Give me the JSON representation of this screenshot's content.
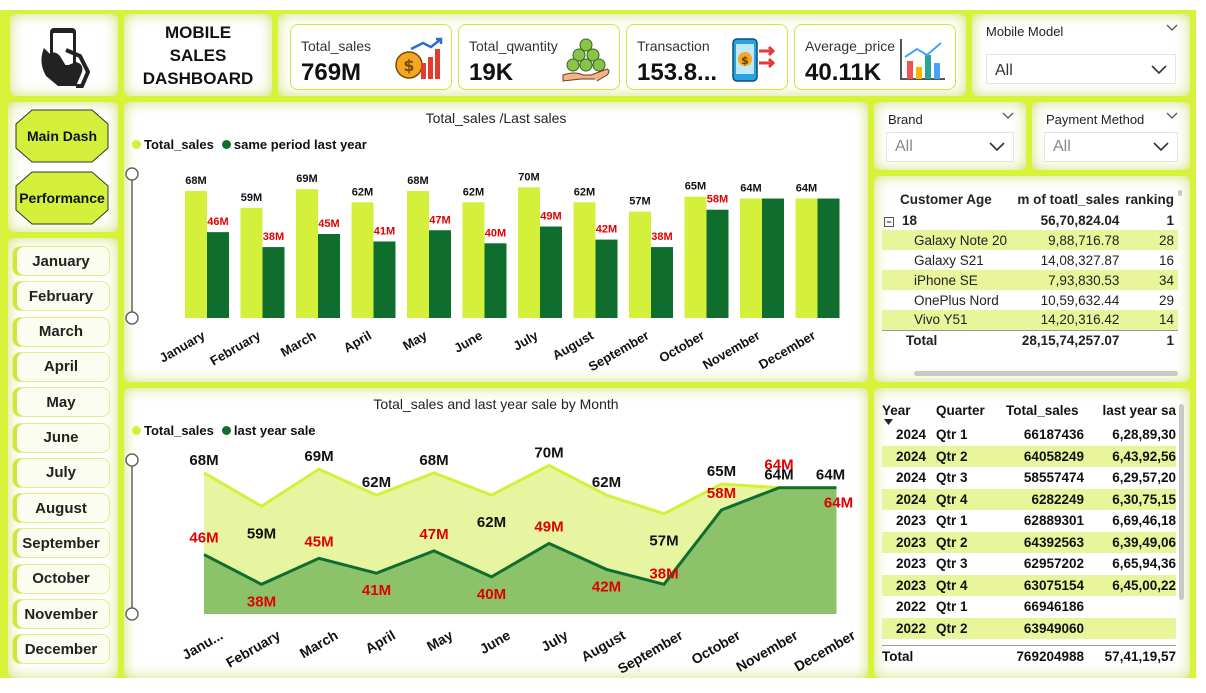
{
  "header": {
    "title_lines": [
      "MOBILE",
      "SALES",
      "DASHBOARD"
    ],
    "logo_icon": "phone-hand-icon"
  },
  "kpis": [
    {
      "label": "Total_sales",
      "value": "769M",
      "icon": "money-growth-icon"
    },
    {
      "label": "Total_qwantity",
      "value": "19K",
      "icon": "coins-hand-icon"
    },
    {
      "label": "Transaction",
      "value": "153.8...",
      "icon": "phone-transfer-icon"
    },
    {
      "label": "Average_price",
      "value": "40.11K",
      "icon": "bar-chart-icon"
    }
  ],
  "slicers": {
    "mobile_model": {
      "title": "Mobile Model",
      "value": "All"
    },
    "brand": {
      "title": "Brand",
      "value": "All"
    },
    "payment": {
      "title": "Payment Method",
      "value": "All"
    }
  },
  "nav": {
    "main": "Main Dash",
    "performance": "Performance"
  },
  "months": [
    "January",
    "February",
    "March",
    "April",
    "May",
    "June",
    "July",
    "August",
    "September",
    "October",
    "November",
    "December"
  ],
  "colors": {
    "accent": "#d8f23a",
    "bar_light": "#d4f03a",
    "bar_dark": "#0f6e2e",
    "area_light": "#e8f5a0",
    "area_dark": "#8cc26a",
    "red_label": "#e00000"
  },
  "bar_chart": {
    "title": "Total_sales /Last sales",
    "legend": [
      "Total_sales",
      "same period last year"
    ]
  },
  "area_chart": {
    "title": "Total_sales and last year sale by Month",
    "legend": [
      "Total_sales",
      "last year sale"
    ],
    "first_tick": "Janu..."
  },
  "chart_data": [
    {
      "type": "bar",
      "title": "Total_sales /Last sales",
      "categories": [
        "January",
        "February",
        "March",
        "April",
        "May",
        "June",
        "July",
        "August",
        "September",
        "October",
        "November",
        "December"
      ],
      "series": [
        {
          "name": "Total_sales",
          "values": [
            68,
            59,
            69,
            62,
            68,
            62,
            70,
            62,
            57,
            65,
            64,
            64
          ],
          "labels": [
            "68M",
            "59M",
            "69M",
            "62M",
            "68M",
            "62M",
            "70M",
            "62M",
            "57M",
            "65M",
            "64M",
            "64M"
          ]
        },
        {
          "name": "same period last year",
          "values": [
            46,
            38,
            45,
            41,
            47,
            40,
            49,
            42,
            38,
            58,
            64,
            64
          ],
          "labels": [
            "46M",
            "38M",
            "45M",
            "41M",
            "47M",
            "40M",
            "49M",
            "42M",
            "38M",
            "58M",
            "",
            ""
          ]
        }
      ],
      "ylim": [
        0,
        75
      ]
    },
    {
      "type": "area",
      "title": "Total_sales and last year sale by Month",
      "categories": [
        "January",
        "February",
        "March",
        "April",
        "May",
        "June",
        "July",
        "August",
        "September",
        "October",
        "November",
        "December"
      ],
      "series": [
        {
          "name": "Total_sales",
          "values": [
            68,
            59,
            69,
            62,
            68,
            62,
            70,
            62,
            57,
            65,
            64,
            64
          ],
          "labels": [
            "68M",
            "59M",
            "69M",
            "62M",
            "68M",
            "62M",
            "70M",
            "62M",
            "57M",
            "65M",
            "64M",
            "64M"
          ]
        },
        {
          "name": "last year sale",
          "values": [
            46,
            38,
            45,
            41,
            47,
            40,
            49,
            42,
            38,
            58,
            64,
            64
          ],
          "labels": [
            "46M",
            "38M",
            "45M",
            "41M",
            "47M",
            "40M",
            "49M",
            "42M",
            "38M",
            "58M",
            "64M",
            "64M"
          ]
        }
      ],
      "ylim": [
        30,
        72
      ]
    }
  ],
  "age_table": {
    "headers": [
      "Customer Age",
      "m of toatl_sales",
      "ranking"
    ],
    "group": {
      "label": "18",
      "sum": "56,70,824.04",
      "rank": "1"
    },
    "rows": [
      {
        "name": "Galaxy Note 20",
        "sum": "9,88,716.78",
        "rank": "28",
        "hl": true
      },
      {
        "name": "Galaxy S21",
        "sum": "14,08,327.87",
        "rank": "16",
        "hl": false
      },
      {
        "name": "iPhone SE",
        "sum": "7,93,830.53",
        "rank": "34",
        "hl": true
      },
      {
        "name": "OnePlus Nord",
        "sum": "10,59,632.44",
        "rank": "29",
        "hl": false
      },
      {
        "name": "Vivo Y51",
        "sum": "14,20,316.42",
        "rank": "14",
        "hl": true
      }
    ],
    "total": {
      "label": "Total",
      "sum": "28,15,74,257.07",
      "rank": "1"
    }
  },
  "year_table": {
    "headers": [
      "Year",
      "Quarter",
      "Total_sales",
      "last year sa"
    ],
    "rows": [
      {
        "year": "2024",
        "q": "Qtr 1",
        "sales": "66187436",
        "last": "6,28,89,30",
        "hl": false
      },
      {
        "year": "2024",
        "q": "Qtr 2",
        "sales": "64058249",
        "last": "6,43,92,56",
        "hl": true
      },
      {
        "year": "2024",
        "q": "Qtr 3",
        "sales": "58557474",
        "last": "6,29,57,20",
        "hl": false
      },
      {
        "year": "2024",
        "q": "Qtr 4",
        "sales": "6282249",
        "last": "6,30,75,15",
        "hl": true
      },
      {
        "year": "2023",
        "q": "Qtr 1",
        "sales": "62889301",
        "last": "6,69,46,18",
        "hl": false
      },
      {
        "year": "2023",
        "q": "Qtr 2",
        "sales": "64392563",
        "last": "6,39,49,06",
        "hl": true
      },
      {
        "year": "2023",
        "q": "Qtr 3",
        "sales": "62957202",
        "last": "6,65,94,36",
        "hl": false
      },
      {
        "year": "2023",
        "q": "Qtr 4",
        "sales": "63075154",
        "last": "6,45,00,22",
        "hl": true
      },
      {
        "year": "2022",
        "q": "Qtr 1",
        "sales": "66946186",
        "last": "",
        "hl": false
      },
      {
        "year": "2022",
        "q": "Qtr 2",
        "sales": "63949060",
        "last": "",
        "hl": true
      }
    ],
    "total": {
      "label": "Total",
      "sales": "769204988",
      "last": "57,41,19,57"
    }
  }
}
